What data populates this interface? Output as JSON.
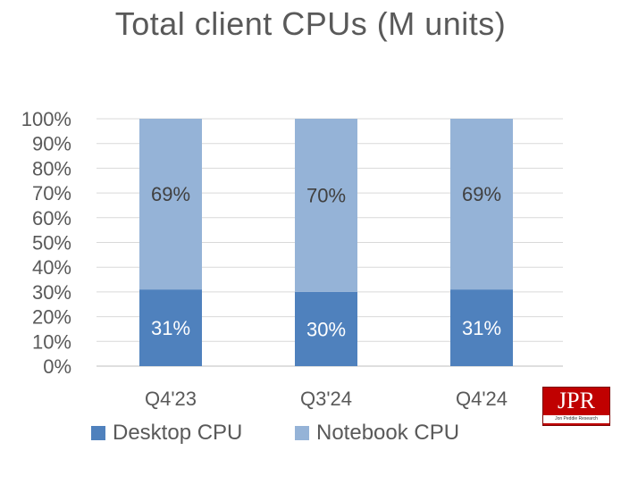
{
  "chart_data": {
    "type": "bar",
    "stacked": true,
    "title": "Total client CPUs (M units)",
    "xlabel": "",
    "ylabel": "",
    "ylim": [
      0,
      100
    ],
    "y_tick_labels": [
      "0%",
      "10%",
      "20%",
      "30%",
      "40%",
      "50%",
      "60%",
      "70%",
      "80%",
      "90%",
      "100%"
    ],
    "grid": true,
    "legend_position": "bottom",
    "categories": [
      "Q4'23",
      "Q3'24",
      "Q4'24"
    ],
    "series": [
      {
        "name": "Desktop CPU",
        "color": "#4f81bd",
        "values": [
          31,
          30,
          31
        ],
        "labels": [
          "31%",
          "30%",
          "31%"
        ]
      },
      {
        "name": "Notebook CPU",
        "color": "#95b3d7",
        "values": [
          69,
          70,
          69
        ],
        "labels": [
          "69%",
          "70%",
          "69%"
        ]
      }
    ]
  },
  "logo": {
    "text": "JPR",
    "subtext": "Jon Peddie Research"
  }
}
